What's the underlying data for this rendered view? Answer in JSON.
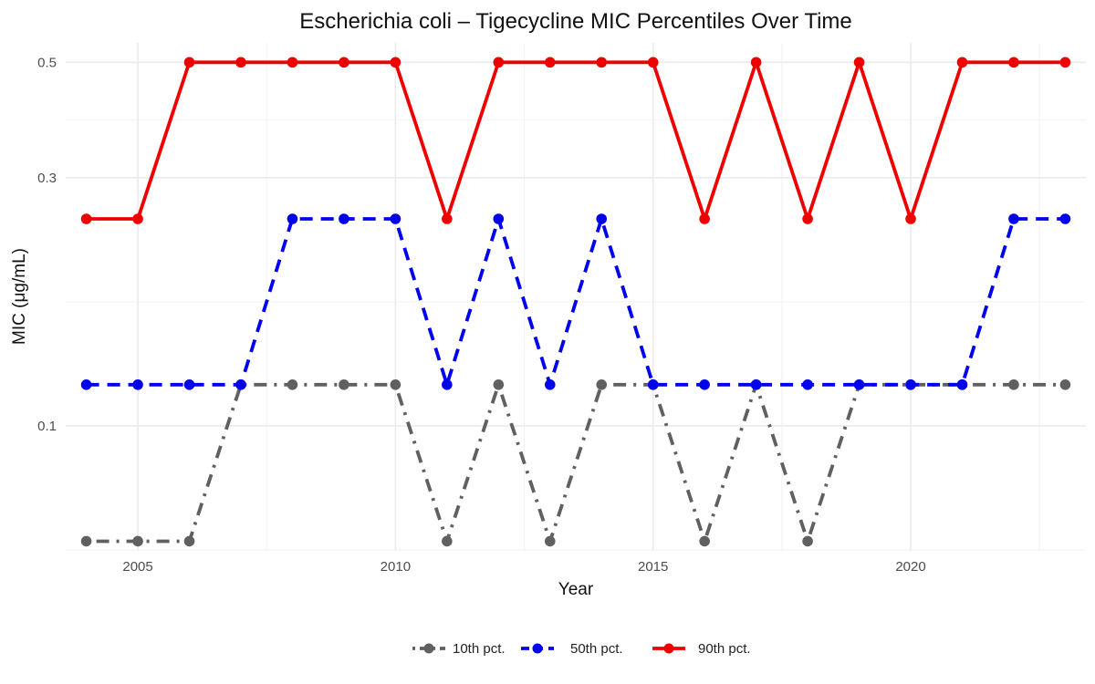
{
  "chart_data": {
    "type": "line",
    "title": "Escherichia coli – Tigecycline MIC Percentiles Over Time",
    "xlabel": "Year",
    "ylabel": "MIC (μg/mL)",
    "y_scale": "log10",
    "xlim": [
      2003.6,
      2023.4
    ],
    "ylim": [
      0.0575,
      0.545
    ],
    "x_ticks": [
      2005,
      2010,
      2015,
      2020
    ],
    "y_ticks": [
      0.1,
      0.3,
      0.5
    ],
    "grid": true,
    "legend_position": "bottom",
    "x": [
      2004,
      2005,
      2006,
      2007,
      2008,
      2009,
      2010,
      2011,
      2012,
      2013,
      2014,
      2015,
      2016,
      2017,
      2018,
      2019,
      2020,
      2021,
      2022,
      2023
    ],
    "series": [
      {
        "name": "10th pct.",
        "color": "#606060",
        "dash": "dotdash",
        "values": [
          0.06,
          0.06,
          0.06,
          0.12,
          0.12,
          0.12,
          0.12,
          0.06,
          0.12,
          0.06,
          0.12,
          0.12,
          0.06,
          0.12,
          0.06,
          0.12,
          0.12,
          0.12,
          0.12,
          0.12
        ]
      },
      {
        "name": "50th pct.",
        "color": "#0000ee",
        "dash": "dashed",
        "values": [
          0.12,
          0.12,
          0.12,
          0.12,
          0.25,
          0.25,
          0.25,
          0.12,
          0.25,
          0.12,
          0.25,
          0.12,
          0.12,
          0.12,
          0.12,
          0.12,
          0.12,
          0.12,
          0.25,
          0.25
        ]
      },
      {
        "name": "90th pct.",
        "color": "#ee0000",
        "dash": "solid",
        "values": [
          0.25,
          0.25,
          0.5,
          0.5,
          0.5,
          0.5,
          0.5,
          0.25,
          0.5,
          0.5,
          0.5,
          0.5,
          0.25,
          0.5,
          0.25,
          0.5,
          0.25,
          0.5,
          0.5,
          0.5
        ]
      }
    ]
  }
}
